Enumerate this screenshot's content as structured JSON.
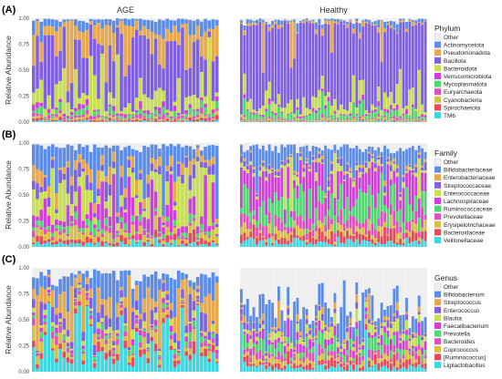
{
  "chart_data": [
    {
      "type": "bar",
      "stacked": true,
      "panel_label": "(A)",
      "facets": [
        "AGE",
        "Healthy"
      ],
      "ylabel": "Relative Abundance",
      "yticks": [
        "0.00",
        "0.25",
        "0.50",
        "0.75",
        "1.00"
      ],
      "ylim": [
        0,
        1
      ],
      "legend_title": "Phylum",
      "legend_placement": "right",
      "categories": [
        "Other",
        "Actinomycetota",
        "Pseudomonadota",
        "Bacillota",
        "Bacteroidota",
        "Verrucomicrobiota",
        "Mycoplasmatota",
        "Euryarchaeota",
        "Cyanobacteria",
        "Spirochaetota",
        "TM6"
      ],
      "colors": [
        "#f0f0f0",
        "#5b8de8",
        "#e8a84c",
        "#8060e0",
        "#c8e050",
        "#d040d8",
        "#50d870",
        "#e050c0",
        "#d8c040",
        "#e84858",
        "#40d8e0"
      ],
      "samples_per_facet": [
        49,
        60
      ],
      "note": "Stacked per-sample proportions; each bar sums to 1.0."
    },
    {
      "type": "bar",
      "stacked": true,
      "panel_label": "(B)",
      "facets": [
        "AGE",
        "Healthy"
      ],
      "ylabel": "Relative Abundance",
      "yticks": [
        "0.00",
        "0.25",
        "0.50",
        "0.75",
        "1.00"
      ],
      "ylim": [
        0,
        1
      ],
      "legend_title": "Family",
      "legend_placement": "right",
      "categories": [
        "Other",
        "Bifidobacteriaceae",
        "Enterobacteriaceae",
        "Streptococcaceae",
        "Enterococcaceae",
        "Lachnospiraceae",
        "Ruminococcaceae",
        "Prevotellaceae",
        "Erysipelotrichaceae",
        "Bacteroidaceae",
        "Veillonellaceae"
      ],
      "colors": [
        "#f0f0f0",
        "#5b8de8",
        "#e8a84c",
        "#8060e0",
        "#c8e050",
        "#d040d8",
        "#50d870",
        "#e050c0",
        "#d8c040",
        "#e84858",
        "#40d8e0"
      ],
      "samples_per_facet": [
        49,
        60
      ]
    },
    {
      "type": "bar",
      "stacked": true,
      "panel_label": "(C)",
      "facets": [
        "AGE",
        "Healthy"
      ],
      "ylabel": "Relative Abundance",
      "yticks": [
        "0.00",
        "0.25",
        "0.50",
        "0.75",
        "1.00"
      ],
      "ylim": [
        0,
        1
      ],
      "legend_title": "Genus",
      "legend_placement": "right",
      "categories": [
        "Other",
        "Bifidobacterium",
        "Streptococcus",
        "Enterococcus",
        "Blautia",
        "Faecalibacterium",
        "Prevotella",
        "Bacteroides",
        "Coprococcus",
        "[Ruminococcus]",
        "Ligilactobacillus"
      ],
      "colors": [
        "#f0f0f0",
        "#5b8de8",
        "#e8a84c",
        "#8060e0",
        "#c8e050",
        "#d040d8",
        "#50d870",
        "#e050c0",
        "#d8c040",
        "#e84858",
        "#40d8e0"
      ],
      "samples_per_facet": [
        49,
        60
      ]
    }
  ]
}
